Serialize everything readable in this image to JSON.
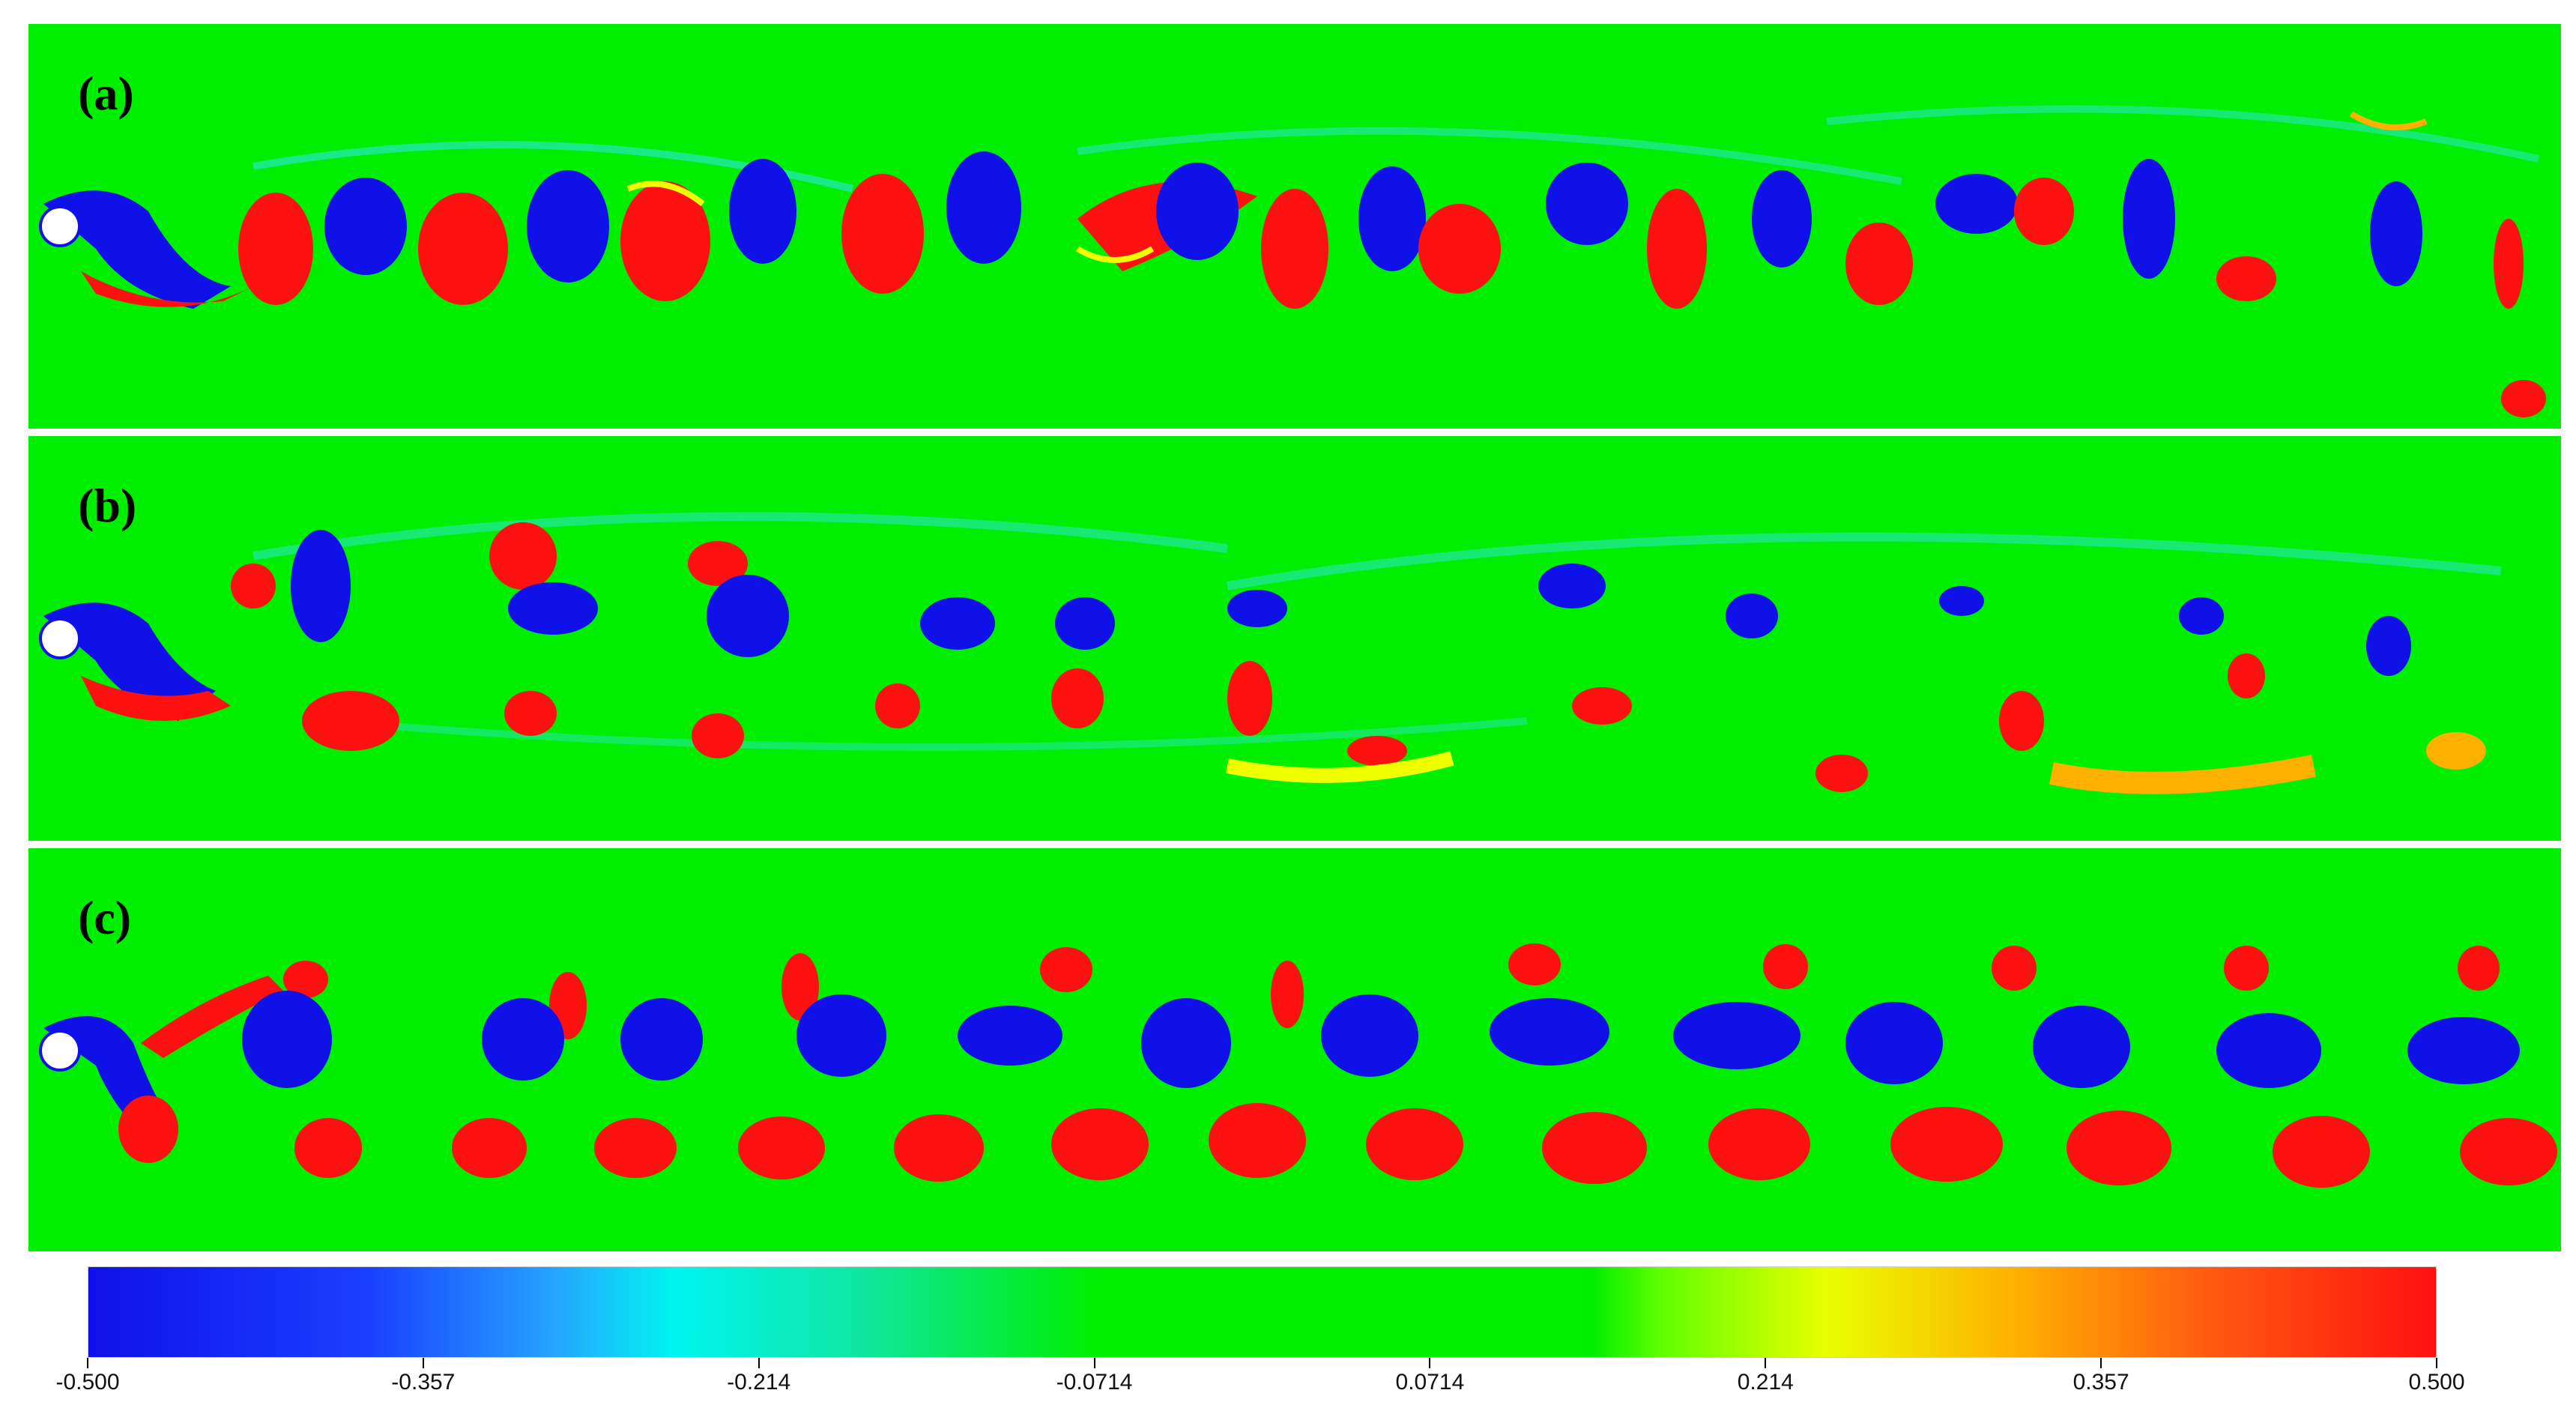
{
  "panels": [
    {
      "id": "a",
      "label": "(a)"
    },
    {
      "id": "b",
      "label": "(b)"
    },
    {
      "id": "c",
      "label": "(c)"
    }
  ],
  "colorbar": {
    "min": -0.5,
    "max": 0.5,
    "tick_labels": [
      "-0.500",
      "-0.357",
      "-0.214",
      "-0.0714",
      "0.0714",
      "0.214",
      "0.357",
      "0.500"
    ],
    "colors": {
      "min": "#1010e8",
      "mid": "#00ee00",
      "max": "#ff1010"
    }
  }
}
